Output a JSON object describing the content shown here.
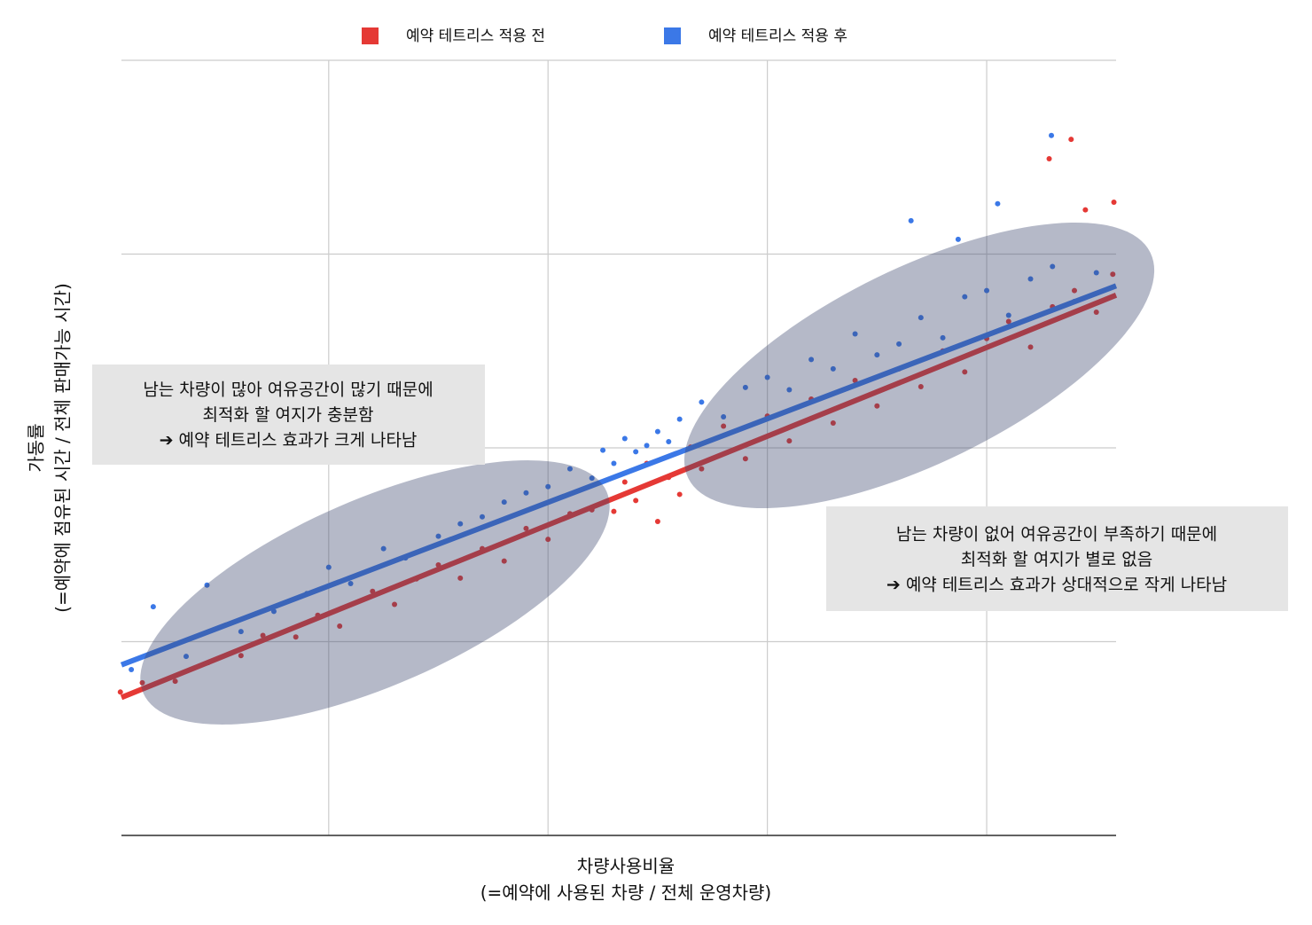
{
  "chart_data": {
    "type": "scatter",
    "x_label": [
      "차량사용비율",
      "(=예약에 사용된 차량 / 전체 운영차량)"
    ],
    "y_label": [
      "가동률",
      "(=예약에 점유된 시간 / 전체 판매가능 시간)"
    ],
    "xlim": [
      1.1,
      91.8
    ],
    "ylim": [
      0,
      100
    ],
    "xticks": [
      20,
      40,
      60,
      80
    ],
    "yticks": [
      0,
      25,
      50,
      75,
      100
    ],
    "grid": true,
    "series": [
      {
        "name": "예약 테트리스 적용 전",
        "color": "#e53935",
        "x": [
          1,
          3,
          6,
          9,
          12,
          14,
          17,
          19,
          21,
          24,
          26,
          28,
          30,
          32,
          34,
          36,
          38,
          40,
          42,
          44,
          46,
          47,
          48,
          49,
          50,
          51,
          52,
          53,
          54,
          56,
          58,
          60,
          62,
          64,
          66,
          68,
          70,
          72,
          74,
          76,
          78,
          80,
          82,
          84,
          86,
          88,
          90,
          91.5,
          85.7,
          87.7,
          89,
          91.6
        ],
        "values": [
          18.5,
          19.7,
          19.9,
          22.3,
          23.2,
          25.8,
          25.6,
          28.4,
          27.0,
          31.5,
          29.8,
          33.1,
          34.9,
          33.2,
          37.0,
          35.4,
          39.6,
          38.2,
          41.5,
          42.0,
          41.8,
          45.6,
          43.2,
          48.0,
          40.5,
          46.2,
          44.0,
          50.1,
          47.3,
          52.8,
          48.6,
          54.1,
          50.9,
          56.3,
          53.2,
          58.7,
          55.4,
          60.2,
          57.9,
          62.5,
          59.8,
          64.1,
          66.3,
          63.0,
          68.2,
          70.3,
          67.5,
          72.4,
          87.3,
          89.8,
          80.7,
          81.7
        ],
        "trend_x": [
          1.1,
          91.8
        ],
        "trend_y": [
          17.8,
          69.7
        ]
      },
      {
        "name": "예약 테트리스 적용 후",
        "color": "#3b78e7",
        "x": [
          4,
          8.9,
          2,
          7,
          12,
          15,
          18,
          20,
          22,
          25,
          27,
          30,
          32,
          34,
          36,
          38,
          40,
          42,
          44,
          45,
          46,
          47,
          48,
          49,
          50,
          51,
          52,
          54,
          56,
          58,
          60,
          62,
          64,
          66,
          68,
          70,
          72,
          74,
          76,
          78,
          80,
          82,
          84,
          86,
          88,
          90,
          73.1,
          77.4,
          85.9,
          81
        ],
        "values": [
          29.5,
          32.3,
          21.4,
          23.1,
          26.3,
          28.9,
          31.2,
          34.6,
          32.5,
          37.0,
          35.8,
          38.6,
          40.2,
          41.1,
          43.0,
          44.2,
          45.0,
          47.3,
          46.1,
          49.7,
          48.0,
          51.2,
          49.5,
          50.3,
          52.1,
          50.8,
          53.7,
          55.9,
          54.0,
          57.8,
          59.1,
          57.5,
          61.4,
          60.2,
          64.7,
          62.0,
          63.4,
          66.8,
          64.2,
          69.5,
          70.3,
          67.1,
          71.8,
          73.4,
          68.9,
          72.6,
          79.3,
          76.9,
          90.3,
          81.5
        ],
        "trend_x": [
          1.1,
          91.8
        ],
        "trend_y": [
          22.0,
          70.9
        ]
      }
    ],
    "annotations": [
      [
        "남는 차량이 많아 여유공간이 많기 때문에",
        "최적화 할 여지가 충분함",
        "➔ 예약 테트리스 효과가 크게 나타남"
      ],
      [
        "남는 차량이 없어 여유공간이 부족하기 때문에",
        "최적화 할 여지가 별로 없음",
        "➔ 예약 테트리스 효과가 상대적으로 작게 나타남"
      ]
    ]
  }
}
